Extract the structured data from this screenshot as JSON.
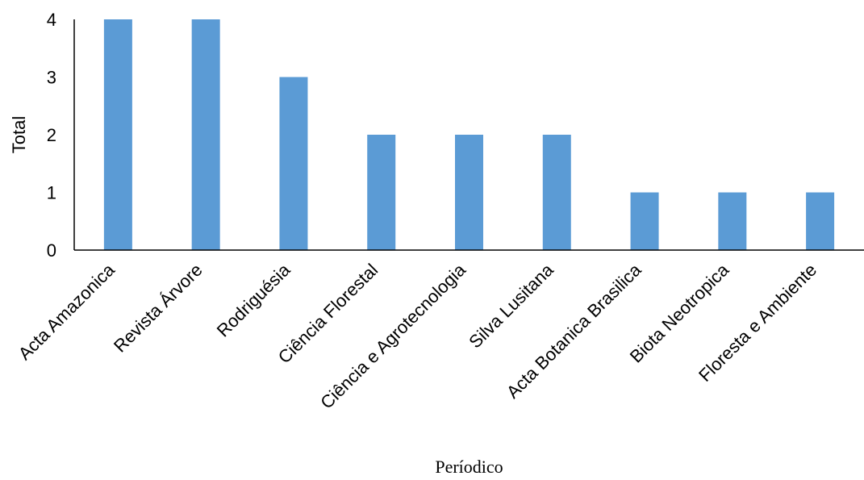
{
  "chart_data": {
    "type": "bar",
    "categories": [
      "Acta Amazonica",
      "Revista Árvore",
      "Rodriguésia",
      "Ciência Florestal",
      "Ciência e Agrotecnologia",
      "Silva Lusitana",
      "Acta Botanica Brasilica",
      "Biota Neotropica",
      "Floresta e Ambiente"
    ],
    "values": [
      4,
      4,
      3,
      2,
      2,
      2,
      1,
      1,
      1
    ],
    "xlabel": "Períodico",
    "ylabel": "Total",
    "ylim": [
      0,
      4
    ],
    "yticks": [
      0,
      1,
      2,
      3,
      4
    ],
    "bar_color": "#5B9BD5",
    "grid": false,
    "legend": "none"
  }
}
